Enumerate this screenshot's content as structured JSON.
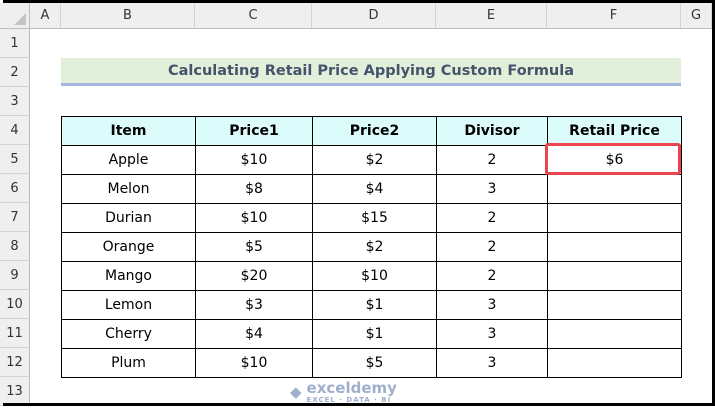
{
  "columns": [
    "A",
    "B",
    "C",
    "D",
    "E",
    "F",
    "G"
  ],
  "rows": [
    "1",
    "2",
    "3",
    "4",
    "5",
    "6",
    "7",
    "8",
    "9",
    "10",
    "11",
    "12",
    "13"
  ],
  "title": "Calculating Retail Price Applying Custom Formula",
  "table": {
    "headers": [
      "Item",
      "Price1",
      "Price2",
      "Divisor",
      "Retail Price"
    ],
    "rows": [
      [
        "Apple",
        "$10",
        "$2",
        "2",
        "$6"
      ],
      [
        "Melon",
        "$8",
        "$4",
        "3",
        ""
      ],
      [
        "Durian",
        "$10",
        "$15",
        "2",
        ""
      ],
      [
        "Orange",
        "$5",
        "$2",
        "2",
        ""
      ],
      [
        "Mango",
        "$20",
        "$10",
        "2",
        ""
      ],
      [
        "Lemon",
        "$3",
        "$1",
        "3",
        ""
      ],
      [
        "Cherry",
        "$4",
        "$1",
        "3",
        ""
      ],
      [
        "Plum",
        "$10",
        "$5",
        "3",
        ""
      ]
    ]
  },
  "selected_cell": "F5",
  "watermark": {
    "name": "exceldemy",
    "tagline": "EXCEL · DATA · BI"
  }
}
